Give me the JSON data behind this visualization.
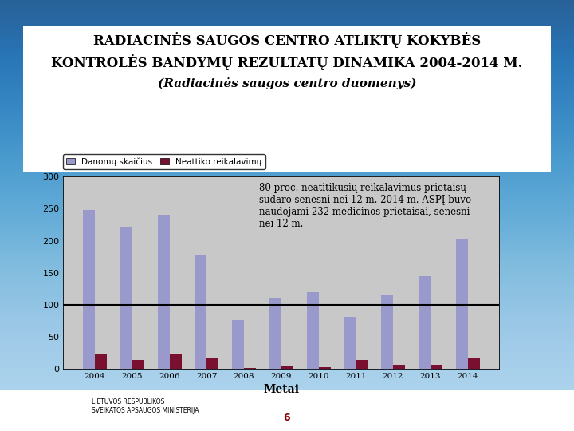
{
  "title_line1": "RADIACINĖS SAUGOS CENTRO ATLIKTŲ KOKYBĖS",
  "title_line2": "KONTROLĖS BANDYMŲ REZULTATŲ DINAMIKA 2004-2014 M.",
  "title_line3": "(Radiacinės saugos centro duomenys)",
  "years": [
    "2004",
    "2005",
    "2006",
    "2007",
    "2008",
    "2009",
    "2010",
    "2011",
    "2012",
    "2013",
    "2014"
  ],
  "series1_values": [
    248,
    222,
    240,
    178,
    76,
    111,
    119,
    81,
    114,
    144,
    203
  ],
  "series2_values": [
    23,
    13,
    22,
    17,
    1,
    3,
    2,
    13,
    6,
    6,
    17
  ],
  "series1_label": "Danomų skaičius",
  "series2_label": "Neattiko reikalavimų",
  "series1_color": "#9999cc",
  "series2_color": "#7a1030",
  "xlabel": "Metai",
  "ylim": [
    0,
    300
  ],
  "yticks": [
    0,
    50,
    100,
    150,
    200,
    250,
    300
  ],
  "hline_y": 100,
  "plot_bg": "#c8c8c8",
  "annotation": "80 proc. neatitikusių reikalavimus prietaisų\nsudaro senesni nei 12 m. 2014 m. ASPĮ buvo\nnaudojami 232 medicinos prietaisai, senesni\nnei 12 m.",
  "annotation_fontsize": 8.5,
  "title_fontsize": 12,
  "outer_bg_top": "#5aabdc",
  "outer_bg_bottom": "#a8d4ef",
  "white_bg": "#ffffff",
  "footer_text": "LIETUVOS RESPUBLIKOS\nSVEIKATOS APSAUGOS MINISTERIJA",
  "page_num": "6"
}
